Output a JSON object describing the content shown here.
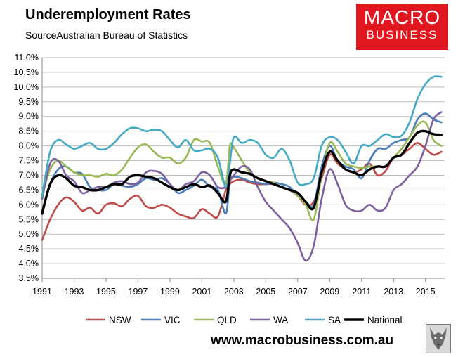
{
  "header": {
    "title": "Underemployment Rates",
    "subtitle": "SourceAustralian Bureau of Statistics"
  },
  "logo": {
    "line1": "MACRO",
    "line2": "BUSINESS"
  },
  "footer": {
    "url": "www.macrobusiness.com.au"
  },
  "colors": {
    "NSW": "#be4b48",
    "VIC": "#4a7ebb",
    "QLD": "#98b954",
    "WA": "#7d60a0",
    "SA": "#46aac5",
    "National": "#000000",
    "logo_bg": "#e0171f"
  },
  "chart_data": {
    "type": "line",
    "title": "Underemployment Rates",
    "xlabel": "",
    "ylabel": "",
    "xlim": [
      1991,
      2016.2
    ],
    "ylim": [
      3.5,
      11.0
    ],
    "xticks": [
      1991,
      1993,
      1995,
      1997,
      1999,
      2001,
      2003,
      2005,
      2007,
      2009,
      2011,
      2013,
      2015
    ],
    "xtick_labels": [
      "1991",
      "1993",
      "1995",
      "1997",
      "1999",
      "2001",
      "2003",
      "2005",
      "2007",
      "2009",
      "2011",
      "2013",
      "2015"
    ],
    "yticks": [
      3.5,
      4.0,
      4.5,
      5.0,
      5.5,
      6.0,
      6.5,
      7.0,
      7.5,
      8.0,
      8.5,
      9.0,
      9.5,
      10.0,
      10.5,
      11.0
    ],
    "ytick_labels": [
      "3.5%",
      "4.0%",
      "4.5%",
      "5.0%",
      "5.5%",
      "6.0%",
      "6.5%",
      "7.0%",
      "7.5%",
      "8.0%",
      "8.5%",
      "9.0%",
      "9.5%",
      "10.0%",
      "10.5%",
      "11.0%"
    ],
    "grid": "horizontal",
    "legend_position": "bottom",
    "series": [
      {
        "name": "NSW",
        "x": [
          1991.0,
          1991.5,
          1992.0,
          1992.5,
          1993.0,
          1993.5,
          1994.0,
          1994.5,
          1995.0,
          1995.5,
          1996.0,
          1996.5,
          1997.0,
          1997.5,
          1998.0,
          1998.5,
          1999.0,
          1999.5,
          2000.0,
          2000.5,
          2001.0,
          2001.5,
          2002.0,
          2002.5,
          2002.75,
          2003.0,
          2003.5,
          2004.0,
          2004.5,
          2005.0,
          2005.5,
          2006.0,
          2006.5,
          2007.0,
          2007.5,
          2008.0,
          2008.5,
          2009.0,
          2009.5,
          2010.0,
          2010.5,
          2011.0,
          2011.5,
          2012.0,
          2012.5,
          2013.0,
          2013.5,
          2014.0,
          2014.5,
          2015.0,
          2015.5,
          2016.0
        ],
        "values": [
          4.8,
          5.5,
          6.0,
          6.25,
          6.1,
          5.8,
          5.9,
          5.7,
          6.0,
          6.05,
          5.95,
          6.2,
          6.3,
          5.95,
          5.9,
          6.0,
          5.9,
          5.7,
          5.6,
          5.55,
          5.85,
          5.7,
          5.6,
          6.5,
          6.7,
          6.8,
          6.85,
          6.75,
          6.7,
          6.7,
          6.7,
          6.6,
          6.5,
          6.3,
          6.0,
          6.1,
          6.9,
          7.7,
          7.4,
          7.2,
          7.1,
          7.2,
          7.4,
          7.0,
          7.15,
          7.6,
          7.7,
          7.9,
          8.1,
          7.9,
          7.7,
          7.8
        ]
      },
      {
        "name": "VIC",
        "x": [
          1991.0,
          1991.5,
          1992.0,
          1992.5,
          1993.0,
          1993.5,
          1994.0,
          1994.5,
          1995.0,
          1995.5,
          1996.0,
          1996.5,
          1997.0,
          1997.5,
          1998.0,
          1998.5,
          1999.0,
          1999.5,
          2000.0,
          2000.5,
          2001.0,
          2001.5,
          2002.0,
          2002.5,
          2002.75,
          2003.0,
          2003.5,
          2004.0,
          2004.5,
          2005.0,
          2005.5,
          2006.0,
          2006.5,
          2007.0,
          2007.5,
          2008.0,
          2008.5,
          2009.0,
          2009.5,
          2010.0,
          2010.5,
          2011.0,
          2011.5,
          2012.0,
          2012.5,
          2013.0,
          2013.5,
          2014.0,
          2014.5,
          2015.0,
          2015.5,
          2016.0
        ],
        "values": [
          5.8,
          6.7,
          7.2,
          7.3,
          7.1,
          7.05,
          6.6,
          6.5,
          6.5,
          6.7,
          6.65,
          6.6,
          6.7,
          6.9,
          6.85,
          6.9,
          6.7,
          6.4,
          6.5,
          6.65,
          6.85,
          6.6,
          6.5,
          5.7,
          6.8,
          6.95,
          6.9,
          6.8,
          6.75,
          6.7,
          6.75,
          6.7,
          6.6,
          6.3,
          6.1,
          6.0,
          7.3,
          8.0,
          7.5,
          7.3,
          7.2,
          6.9,
          7.5,
          7.9,
          7.9,
          8.1,
          8.2,
          8.3,
          8.9,
          9.1,
          8.9,
          8.8
        ]
      },
      {
        "name": "QLD",
        "x": [
          1991.0,
          1991.5,
          1992.0,
          1992.5,
          1993.0,
          1993.5,
          1994.0,
          1994.5,
          1995.0,
          1995.5,
          1996.0,
          1996.5,
          1997.0,
          1997.5,
          1998.0,
          1998.5,
          1999.0,
          1999.5,
          2000.0,
          2000.5,
          2001.0,
          2001.5,
          2002.0,
          2002.5,
          2002.75,
          2003.0,
          2003.5,
          2004.0,
          2004.5,
          2005.0,
          2005.5,
          2006.0,
          2006.5,
          2007.0,
          2007.5,
          2008.0,
          2008.5,
          2009.0,
          2009.5,
          2010.0,
          2010.5,
          2011.0,
          2011.5,
          2012.0,
          2012.5,
          2013.0,
          2013.5,
          2014.0,
          2014.5,
          2015.0,
          2015.5,
          2016.0
        ],
        "values": [
          6.3,
          7.2,
          7.5,
          7.3,
          7.1,
          7.0,
          7.0,
          6.95,
          7.05,
          7.0,
          7.2,
          7.6,
          7.95,
          8.05,
          7.8,
          7.6,
          7.6,
          7.4,
          7.6,
          8.2,
          8.15,
          8.1,
          7.3,
          6.7,
          8.0,
          7.95,
          7.5,
          7.1,
          6.9,
          6.8,
          6.75,
          6.6,
          6.5,
          6.3,
          6.0,
          5.5,
          7.0,
          8.1,
          7.8,
          7.4,
          7.3,
          7.25,
          7.3,
          7.3,
          7.3,
          7.6,
          7.9,
          8.3,
          8.7,
          8.8,
          8.2,
          8.0
        ]
      },
      {
        "name": "WA",
        "x": [
          1991.0,
          1991.5,
          1992.0,
          1992.5,
          1993.0,
          1993.5,
          1994.0,
          1994.5,
          1995.0,
          1995.5,
          1996.0,
          1996.5,
          1997.0,
          1997.5,
          1998.0,
          1998.5,
          1999.0,
          1999.5,
          2000.0,
          2000.5,
          2001.0,
          2001.5,
          2002.0,
          2002.5,
          2002.75,
          2003.0,
          2003.5,
          2004.0,
          2004.5,
          2005.0,
          2005.5,
          2006.0,
          2006.5,
          2007.0,
          2007.5,
          2008.0,
          2008.5,
          2009.0,
          2009.5,
          2010.0,
          2010.5,
          2011.0,
          2011.5,
          2012.0,
          2012.5,
          2013.0,
          2013.5,
          2014.0,
          2014.5,
          2015.0,
          2015.5,
          2016.0
        ],
        "values": [
          6.2,
          7.4,
          7.5,
          7.0,
          6.8,
          6.4,
          6.5,
          6.6,
          6.6,
          6.75,
          6.8,
          6.7,
          6.75,
          7.1,
          7.15,
          7.05,
          6.7,
          6.5,
          6.7,
          6.8,
          7.1,
          7.0,
          6.6,
          6.6,
          6.8,
          7.0,
          7.3,
          7.2,
          6.6,
          6.1,
          5.8,
          5.5,
          5.2,
          4.7,
          4.1,
          4.6,
          6.2,
          7.2,
          6.7,
          6.0,
          5.8,
          5.8,
          6.0,
          5.8,
          5.9,
          6.5,
          6.7,
          7.0,
          7.3,
          8.0,
          8.9,
          9.15
        ]
      },
      {
        "name": "SA",
        "x": [
          1991.0,
          1991.5,
          1992.0,
          1992.5,
          1993.0,
          1993.5,
          1994.0,
          1994.5,
          1995.0,
          1995.5,
          1996.0,
          1996.5,
          1997.0,
          1997.5,
          1998.0,
          1998.5,
          1999.0,
          1999.5,
          2000.0,
          2000.5,
          2001.0,
          2001.5,
          2002.0,
          2002.5,
          2002.75,
          2003.0,
          2003.5,
          2004.0,
          2004.5,
          2005.0,
          2005.5,
          2006.0,
          2006.5,
          2007.0,
          2007.5,
          2008.0,
          2008.5,
          2009.0,
          2009.5,
          2010.0,
          2010.5,
          2011.0,
          2011.5,
          2012.0,
          2012.5,
          2013.0,
          2013.5,
          2014.0,
          2014.5,
          2015.0,
          2015.5,
          2016.0
        ],
        "values": [
          6.3,
          7.8,
          8.2,
          8.05,
          7.9,
          8.0,
          8.1,
          7.9,
          7.9,
          8.1,
          8.4,
          8.6,
          8.6,
          8.5,
          8.55,
          8.5,
          8.2,
          7.95,
          8.2,
          7.85,
          7.85,
          7.9,
          7.6,
          6.6,
          7.4,
          8.3,
          8.1,
          8.2,
          8.1,
          7.7,
          7.6,
          7.9,
          7.5,
          6.75,
          6.7,
          6.9,
          8.0,
          8.3,
          8.2,
          7.8,
          7.4,
          8.0,
          8.0,
          8.2,
          8.4,
          8.3,
          8.35,
          8.8,
          9.6,
          10.1,
          10.35,
          10.35
        ]
      },
      {
        "name": "National",
        "x": [
          1991.0,
          1991.5,
          1992.0,
          1992.5,
          1993.0,
          1993.5,
          1994.0,
          1994.5,
          1995.0,
          1995.5,
          1996.0,
          1996.5,
          1997.0,
          1997.5,
          1998.0,
          1998.5,
          1999.0,
          1999.5,
          2000.0,
          2000.5,
          2001.0,
          2001.5,
          2002.0,
          2002.5,
          2002.75,
          2003.0,
          2003.5,
          2004.0,
          2004.5,
          2005.0,
          2005.5,
          2006.0,
          2006.5,
          2007.0,
          2007.5,
          2008.0,
          2008.5,
          2009.0,
          2009.5,
          2010.0,
          2010.5,
          2011.0,
          2011.5,
          2012.0,
          2012.5,
          2013.0,
          2013.5,
          2014.0,
          2014.5,
          2015.0,
          2015.5,
          2016.0
        ],
        "values": [
          5.7,
          6.7,
          7.0,
          6.9,
          6.65,
          6.6,
          6.5,
          6.5,
          6.6,
          6.7,
          6.7,
          6.95,
          7.0,
          6.95,
          6.9,
          6.75,
          6.6,
          6.5,
          6.6,
          6.7,
          6.6,
          6.65,
          6.4,
          6.1,
          7.0,
          7.2,
          7.1,
          7.05,
          6.9,
          6.8,
          6.7,
          6.6,
          6.5,
          6.4,
          6.1,
          5.9,
          7.1,
          7.8,
          7.5,
          7.2,
          7.1,
          7.0,
          7.2,
          7.3,
          7.3,
          7.6,
          7.7,
          8.1,
          8.45,
          8.5,
          8.4,
          8.38
        ]
      }
    ]
  }
}
